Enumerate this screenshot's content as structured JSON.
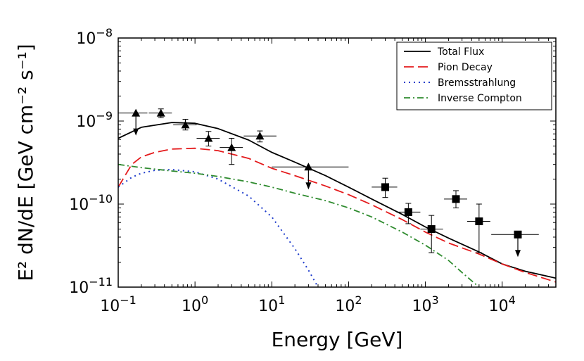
{
  "chart_data": {
    "type": "line",
    "xscale": "log",
    "yscale": "log",
    "xlim": [
      0.1,
      50000
    ],
    "ylim": [
      1e-11,
      1e-08
    ],
    "xlabel": "Energy [GeV]",
    "ylabel": "E² dN/dE [GeV cm⁻² s⁻¹]",
    "x_ticks": [
      {
        "value": 0.1,
        "base": "10",
        "exp": "−1"
      },
      {
        "value": 1,
        "base": "10",
        "exp": "0"
      },
      {
        "value": 10,
        "base": "10",
        "exp": "1"
      },
      {
        "value": 100,
        "base": "10",
        "exp": "2"
      },
      {
        "value": 1000,
        "base": "10",
        "exp": "3"
      },
      {
        "value": 10000,
        "base": "10",
        "exp": "4"
      }
    ],
    "y_ticks": [
      {
        "value": 1e-11,
        "base": "10",
        "exp": "−11"
      },
      {
        "value": 1e-10,
        "base": "10",
        "exp": "−10"
      },
      {
        "value": 1e-09,
        "base": "10",
        "exp": "−9"
      },
      {
        "value": 1e-08,
        "base": "10",
        "exp": "−8"
      }
    ],
    "legend_position": "top-right",
    "series": [
      {
        "name": "Total Flux",
        "color": "#000000",
        "style": "solid",
        "points": [
          [
            0.1,
            6.2e-10
          ],
          [
            0.2,
            8.4e-10
          ],
          [
            0.5,
            9.6e-10
          ],
          [
            1,
            9.4e-10
          ],
          [
            2,
            8.1e-10
          ],
          [
            5,
            5.9e-10
          ],
          [
            10,
            4.2e-10
          ],
          [
            20,
            3.2e-10
          ],
          [
            50,
            2.2e-10
          ],
          [
            100,
            1.6e-10
          ],
          [
            200,
            1.15e-10
          ],
          [
            500,
            7.5e-11
          ],
          [
            1000,
            5.3e-11
          ],
          [
            2000,
            3.9e-11
          ],
          [
            5000,
            2.65e-11
          ],
          [
            10000,
            1.9e-11
          ],
          [
            20000,
            1.55e-11
          ],
          [
            50000,
            1.28e-11
          ]
        ]
      },
      {
        "name": "Pion Decay",
        "color": "#e41a1c",
        "style": "dashed",
        "points": [
          [
            0.1,
            1.6e-10
          ],
          [
            0.15,
            3e-10
          ],
          [
            0.2,
            3.7e-10
          ],
          [
            0.3,
            4.2e-10
          ],
          [
            0.5,
            4.6e-10
          ],
          [
            1,
            4.7e-10
          ],
          [
            2,
            4.4e-10
          ],
          [
            5,
            3.55e-10
          ],
          [
            10,
            2.7e-10
          ],
          [
            20,
            2.2e-10
          ],
          [
            50,
            1.65e-10
          ],
          [
            100,
            1.3e-10
          ],
          [
            200,
            9.8e-11
          ],
          [
            500,
            6.5e-11
          ],
          [
            1000,
            4.6e-11
          ],
          [
            2000,
            3.4e-11
          ],
          [
            5000,
            2.5e-11
          ],
          [
            10000,
            1.9e-11
          ],
          [
            20000,
            1.5e-11
          ],
          [
            50000,
            1.15e-11
          ]
        ]
      },
      {
        "name": "Bremsstrahlung",
        "color": "#1f3dcc",
        "style": "dotted",
        "points": [
          [
            0.1,
            1.6e-10
          ],
          [
            0.15,
            2.1e-10
          ],
          [
            0.2,
            2.35e-10
          ],
          [
            0.3,
            2.55e-10
          ],
          [
            0.5,
            2.6e-10
          ],
          [
            1,
            2.45e-10
          ],
          [
            2,
            2e-10
          ],
          [
            5,
            1.25e-10
          ],
          [
            10,
            7e-11
          ],
          [
            20,
            2.9e-11
          ],
          [
            30,
            1.6e-11
          ],
          [
            40,
            1e-11
          ]
        ]
      },
      {
        "name": "Inverse Compton",
        "color": "#2e8b2e",
        "style": "dashdot",
        "points": [
          [
            0.1,
            3e-10
          ],
          [
            0.2,
            2.75e-10
          ],
          [
            0.5,
            2.5e-10
          ],
          [
            1,
            2.35e-10
          ],
          [
            2,
            2.15e-10
          ],
          [
            5,
            1.85e-10
          ],
          [
            10,
            1.6e-10
          ],
          [
            20,
            1.35e-10
          ],
          [
            50,
            1.1e-10
          ],
          [
            100,
            9e-11
          ],
          [
            200,
            7e-11
          ],
          [
            500,
            4.6e-11
          ],
          [
            1000,
            3.2e-11
          ],
          [
            2000,
            2.1e-11
          ],
          [
            3000,
            1.5e-11
          ],
          [
            5000,
            1e-11
          ]
        ]
      }
    ],
    "data_points": [
      {
        "x": 0.17,
        "y": 1.25e-09,
        "xlo": 0.1,
        "xhi": 0.24,
        "ylo": null,
        "yhi": null,
        "marker": "triangle",
        "upper_limit": true
      },
      {
        "x": 0.36,
        "y": 1.25e-09,
        "xlo": 0.25,
        "xhi": 0.5,
        "ylo": 1.1e-09,
        "yhi": 1.4e-09,
        "marker": "triangle",
        "upper_limit": false
      },
      {
        "x": 0.75,
        "y": 9e-10,
        "xlo": 0.52,
        "xhi": 1.05,
        "ylo": 7.8e-10,
        "yhi": 1.05e-09,
        "marker": "triangle",
        "upper_limit": false
      },
      {
        "x": 1.5,
        "y": 6.2e-10,
        "xlo": 1.05,
        "xhi": 2.1,
        "ylo": 5e-10,
        "yhi": 7.5e-10,
        "marker": "triangle",
        "upper_limit": false
      },
      {
        "x": 3.0,
        "y": 4.8e-10,
        "xlo": 2.1,
        "xhi": 4.2,
        "ylo": 3e-10,
        "yhi": 6.2e-10,
        "marker": "triangle",
        "upper_limit": false
      },
      {
        "x": 7.0,
        "y": 6.6e-10,
        "xlo": 4.3,
        "xhi": 11.5,
        "ylo": 5.6e-10,
        "yhi": 7.6e-10,
        "marker": "triangle",
        "upper_limit": false
      },
      {
        "x": 30,
        "y": 2.8e-10,
        "xlo": 10,
        "xhi": 100,
        "ylo": null,
        "yhi": null,
        "marker": "triangle",
        "upper_limit": true
      },
      {
        "x": 300,
        "y": 1.6e-10,
        "xlo": 200,
        "xhi": 430,
        "ylo": 1.2e-10,
        "yhi": 2.05e-10,
        "marker": "square",
        "upper_limit": false
      },
      {
        "x": 600,
        "y": 8e-11,
        "xlo": 420,
        "xhi": 860,
        "ylo": 5.8e-11,
        "yhi": 1.02e-10,
        "marker": "square",
        "upper_limit": false
      },
      {
        "x": 1200,
        "y": 5e-11,
        "xlo": 860,
        "xhi": 1700,
        "ylo": 2.6e-11,
        "yhi": 7.3e-11,
        "marker": "square",
        "upper_limit": false
      },
      {
        "x": 2500,
        "y": 1.15e-10,
        "xlo": 1750,
        "xhi": 3500,
        "ylo": 9e-11,
        "yhi": 1.45e-10,
        "marker": "square",
        "upper_limit": false
      },
      {
        "x": 5000,
        "y": 6.2e-11,
        "xlo": 3500,
        "xhi": 7000,
        "ylo": 2.6e-11,
        "yhi": 1e-10,
        "marker": "square",
        "upper_limit": false
      },
      {
        "x": 16000,
        "y": 4.3e-11,
        "xlo": 7200,
        "xhi": 30000,
        "ylo": null,
        "yhi": null,
        "marker": "square",
        "upper_limit": true
      }
    ]
  }
}
